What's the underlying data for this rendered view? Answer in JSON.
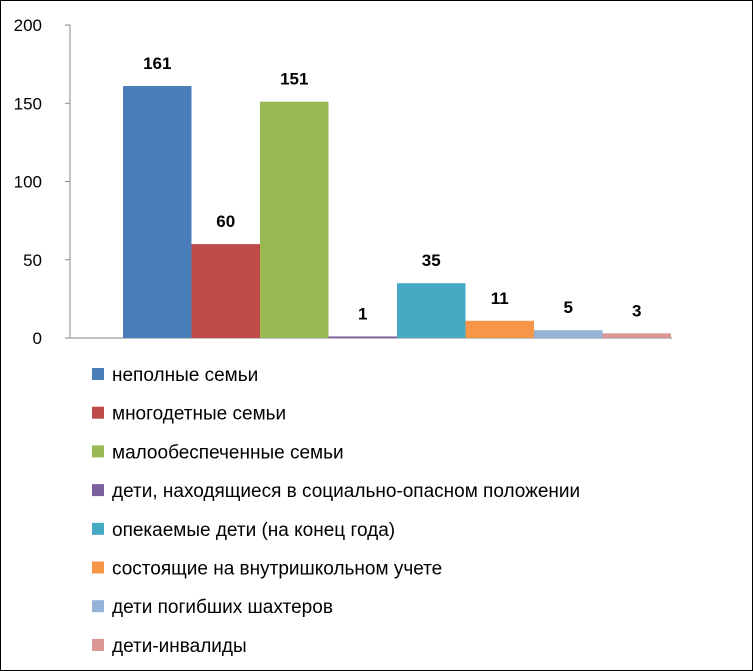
{
  "chart_data": {
    "type": "bar",
    "title": "",
    "xlabel": "",
    "ylabel": "",
    "ylim": [
      0,
      200
    ],
    "yticks": [
      "0",
      "50",
      "100",
      "150",
      "200"
    ],
    "grid": false,
    "legend_position": "bottom",
    "series": [
      {
        "name": "неполные семьи",
        "value": 161,
        "color": "#4A7EBB"
      },
      {
        "name": "многодетные семьи",
        "value": 60,
        "color": "#BE4B48"
      },
      {
        "name": "малообеспеченные семьи",
        "value": 151,
        "color": "#98B954"
      },
      {
        "name": "дети, находящиеся в социально-опасном положении",
        "value": 1,
        "color": "#7D60A0"
      },
      {
        "name": "опекаемые дети (на конец года)",
        "value": 35,
        "color": "#46AAC5"
      },
      {
        "name": "состоящие на внутришкольном учете",
        "value": 11,
        "color": "#F79646"
      },
      {
        "name": "дети погибших шахтеров",
        "value": 5,
        "color": "#95B3D7"
      },
      {
        "name": "дети-инвалиды",
        "value": 3,
        "color": "#D99694"
      }
    ]
  }
}
